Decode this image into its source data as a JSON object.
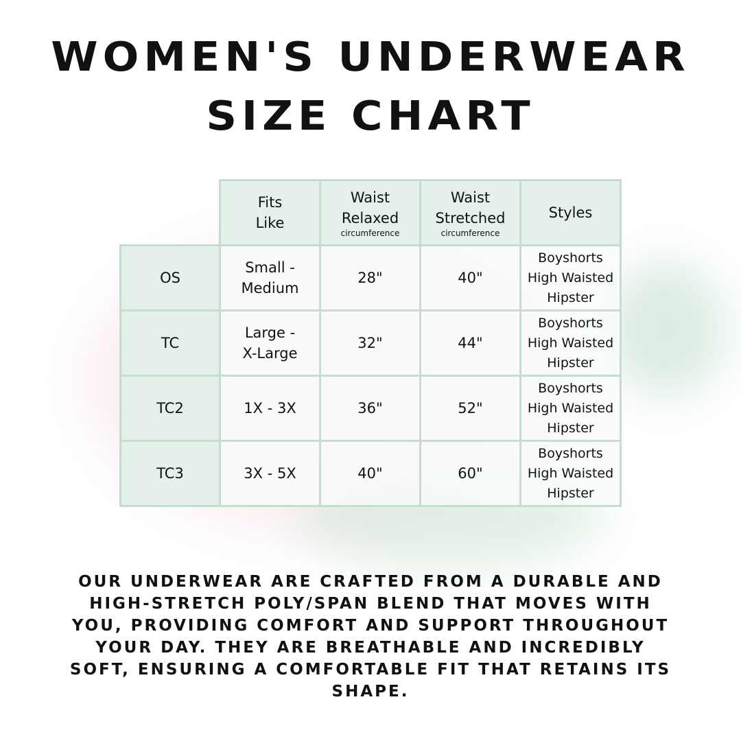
{
  "title": {
    "line1": "WOMEN'S UNDERWEAR",
    "line2": "SIZE CHART"
  },
  "table": {
    "headers": [
      {
        "main1": "Fits",
        "main2": "Like",
        "sub": ""
      },
      {
        "main1": "Waist",
        "main2": "Relaxed",
        "sub": "circumference"
      },
      {
        "main1": "Waist",
        "main2": "Stretched",
        "sub": "circumference"
      },
      {
        "main1": "Styles",
        "main2": "",
        "sub": ""
      }
    ],
    "rows": [
      {
        "size": "OS",
        "fits1": "Small -",
        "fits2": "Medium",
        "relaxed": "28\"",
        "stretched": "40\"",
        "styles": [
          "Boyshorts",
          "High Waisted",
          "Hipster"
        ]
      },
      {
        "size": "TC",
        "fits1": "Large -",
        "fits2": "X-Large",
        "relaxed": "32\"",
        "stretched": "44\"",
        "styles": [
          "Boyshorts",
          "High Waisted",
          "Hipster"
        ]
      },
      {
        "size": "TC2",
        "fits1": "1X - 3X",
        "fits2": "",
        "relaxed": "36\"",
        "stretched": "52\"",
        "styles": [
          "Boyshorts",
          "High Waisted",
          "Hipster"
        ]
      },
      {
        "size": "TC3",
        "fits1": "3X - 5X",
        "fits2": "",
        "relaxed": "40\"",
        "stretched": "60\"",
        "styles": [
          "Boyshorts",
          "High Waisted",
          "Hipster"
        ]
      }
    ]
  },
  "description": "OUR UNDERWEAR ARE CRAFTED FROM A DURABLE AND HIGH-STRETCH POLY/SPAN BLEND THAT MOVES WITH YOU, PROVIDING COMFORT AND SUPPORT THROUGHOUT YOUR DAY. THEY ARE BREATHABLE AND INCREDIBLY SOFT, ENSURING A COMFORTABLE FIT THAT RETAINS ITS SHAPE.",
  "colors": {
    "border": "#c5ddd0",
    "header_bg": "#e6f0ea",
    "text": "#111111"
  }
}
